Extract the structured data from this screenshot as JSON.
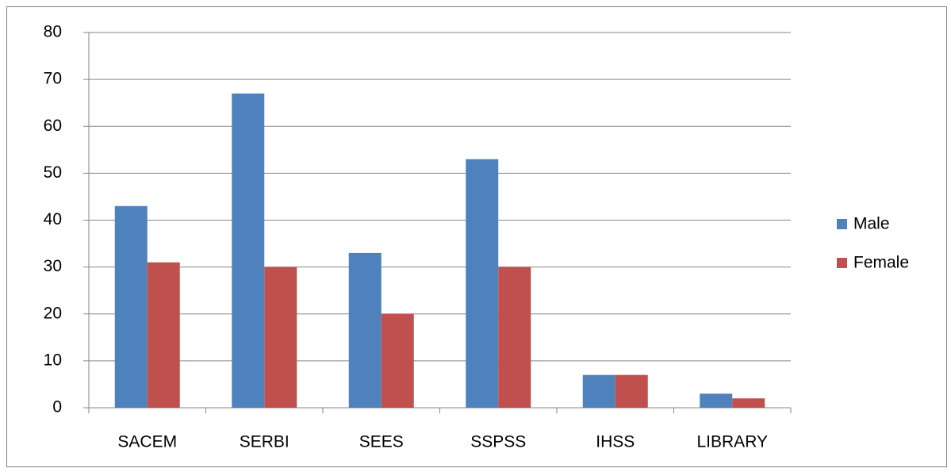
{
  "chart_data": {
    "type": "bar",
    "categories": [
      "SACEM",
      "SERBI",
      "SEES",
      "SSPSS",
      "IHSS",
      "LIBRARY"
    ],
    "series": [
      {
        "name": "Male",
        "color": "#4f81bd",
        "values": [
          43,
          67,
          33,
          53,
          7,
          3
        ]
      },
      {
        "name": "Female",
        "color": "#c0504d",
        "values": [
          31,
          30,
          20,
          30,
          7,
          2
        ]
      }
    ],
    "ylim": [
      0,
      80
    ],
    "yticks": [
      0,
      10,
      20,
      30,
      40,
      50,
      60,
      70,
      80
    ],
    "grid": true,
    "legend": "right"
  }
}
